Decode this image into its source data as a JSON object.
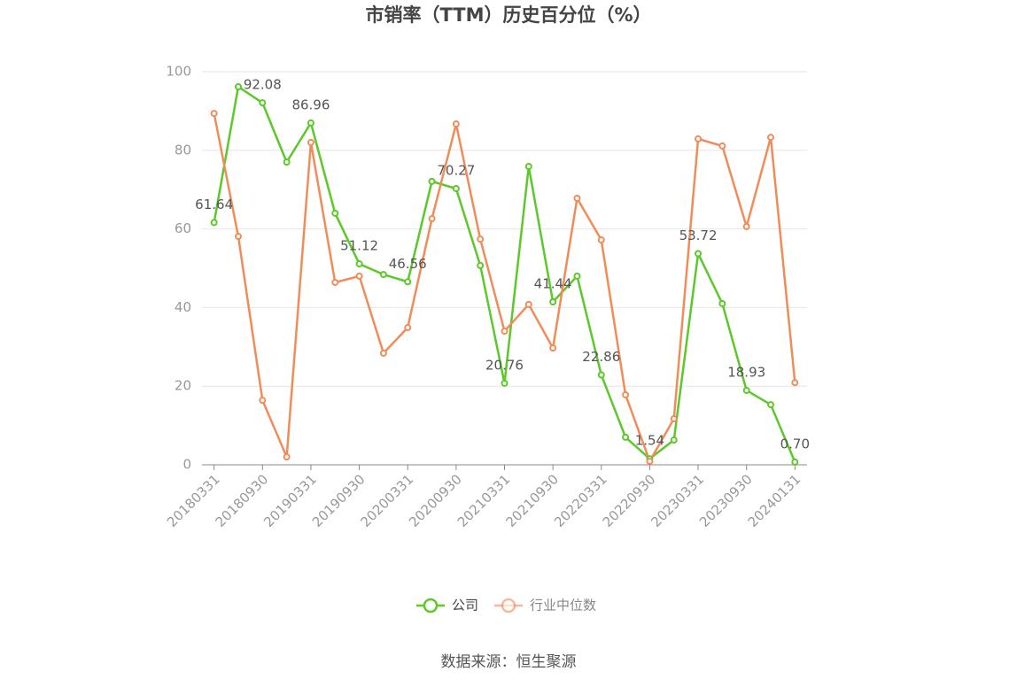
{
  "chart_data": {
    "type": "line",
    "title": "市销率（TTM）历史百分位（%）",
    "categories": [
      "20180331",
      null,
      "20180930",
      null,
      "20190331",
      null,
      "20190930",
      null,
      "20200331",
      null,
      "20200930",
      null,
      "20210331",
      null,
      "20210930",
      null,
      "20220331",
      null,
      "20220930",
      null,
      "20230331",
      null,
      "20230930",
      null,
      "20240131"
    ],
    "series": [
      {
        "name": "公司",
        "color": "#5cc82a",
        "values": [
          61.64,
          96.17,
          92.08,
          77.0,
          86.96,
          64.0,
          51.12,
          48.4,
          46.56,
          72.1,
          70.27,
          50.7,
          20.76,
          75.9,
          41.44,
          48.0,
          22.86,
          7.0,
          1.54,
          6.3,
          53.72,
          41.0,
          18.93,
          15.3,
          0.7
        ],
        "value_labels": [
          "61.64",
          null,
          "92.08",
          null,
          "86.96",
          null,
          "51.12",
          null,
          "46.56",
          null,
          "70.27",
          null,
          "20.76",
          null,
          "41.44",
          null,
          "22.86",
          null,
          "1.54",
          null,
          "53.72",
          null,
          "18.93",
          null,
          "0.70"
        ]
      },
      {
        "name": "行业中位数",
        "color": "#f08c5a",
        "values": [
          89.4,
          58.1,
          16.4,
          2.0,
          82.0,
          46.4,
          48.0,
          28.4,
          34.9,
          62.6,
          86.7,
          57.4,
          34.0,
          40.8,
          29.7,
          67.8,
          57.2,
          17.8,
          0.9,
          11.7,
          82.9,
          81.1,
          60.6,
          83.3,
          20.9
        ]
      }
    ],
    "ylim": [
      0,
      100
    ],
    "yticks": [
      0,
      20,
      40,
      60,
      80,
      100
    ],
    "grid": true,
    "source": "数据来源：恒生聚源"
  }
}
